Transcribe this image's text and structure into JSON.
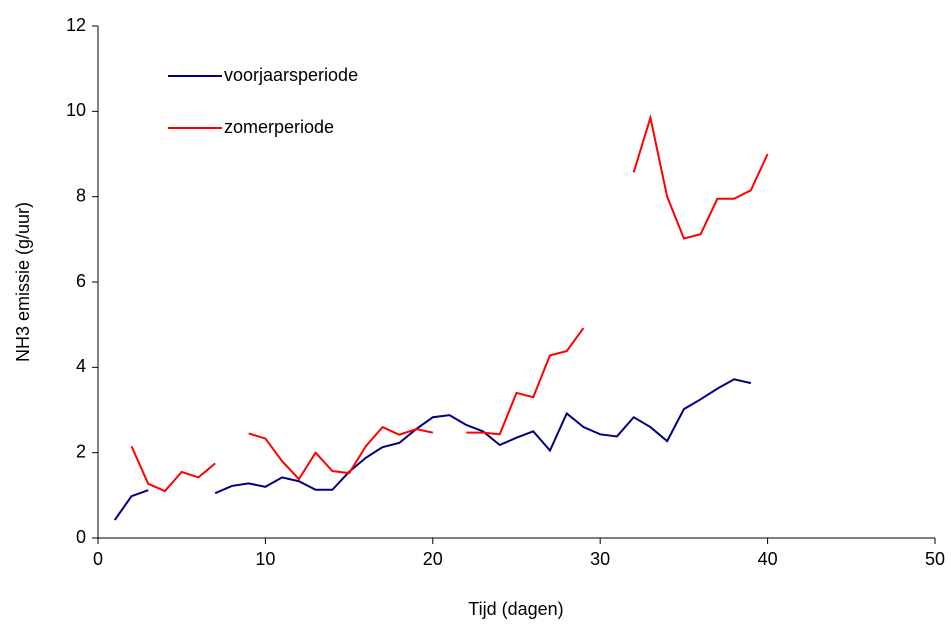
{
  "chart_data": {
    "type": "line",
    "x_label": "Tijd (dagen)",
    "y_label": "NH3 emissie (g/uur)",
    "x": [
      1,
      2,
      3,
      4,
      5,
      6,
      7,
      8,
      9,
      10,
      11,
      12,
      13,
      14,
      15,
      16,
      17,
      18,
      19,
      20,
      21,
      22,
      23,
      24,
      25,
      26,
      27,
      28,
      29,
      30,
      31,
      32,
      33,
      34,
      35,
      36,
      37,
      38,
      39,
      40
    ],
    "series": [
      {
        "name": "voorjaarsperiode",
        "color": "#000080",
        "values": [
          0.42,
          0.98,
          1.12,
          null,
          null,
          null,
          1.05,
          1.22,
          1.28,
          1.2,
          1.42,
          1.33,
          1.13,
          1.13,
          1.55,
          1.88,
          2.13,
          2.23,
          2.55,
          2.83,
          2.88,
          2.65,
          2.5,
          2.18,
          2.35,
          2.5,
          2.05,
          2.92,
          2.6,
          2.43,
          2.38,
          2.83,
          2.6,
          2.27,
          3.02,
          3.25,
          3.5,
          3.72,
          3.63,
          null
        ]
      },
      {
        "name": "zomerperiode",
        "color": "#ff0000",
        "values": [
          null,
          2.15,
          1.27,
          1.1,
          1.55,
          1.42,
          1.75,
          null,
          2.45,
          2.33,
          1.8,
          1.38,
          2.0,
          1.57,
          1.52,
          2.15,
          2.6,
          2.42,
          2.55,
          2.47,
          null,
          2.47,
          2.47,
          2.43,
          3.4,
          3.3,
          4.28,
          4.38,
          4.92,
          null,
          null,
          8.57,
          9.85,
          8.0,
          7.02,
          7.12,
          7.95,
          7.95,
          8.15,
          9.0
        ]
      }
    ],
    "xlim": [
      0,
      50
    ],
    "xticks": [
      0,
      10,
      20,
      30,
      40,
      50
    ],
    "ylim": [
      0,
      12
    ],
    "yticks": [
      0,
      2,
      4,
      6,
      8,
      10,
      12
    ],
    "grid": false
  }
}
